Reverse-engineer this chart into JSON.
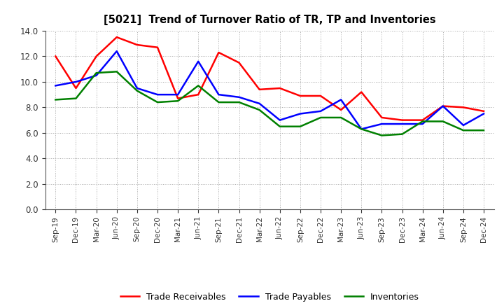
{
  "title": "[5021]  Trend of Turnover Ratio of TR, TP and Inventories",
  "x_labels": [
    "Sep-19",
    "Dec-19",
    "Mar-20",
    "Jun-20",
    "Sep-20",
    "Dec-20",
    "Mar-21",
    "Jun-21",
    "Sep-21",
    "Dec-21",
    "Mar-22",
    "Jun-22",
    "Sep-22",
    "Dec-22",
    "Mar-23",
    "Jun-23",
    "Sep-23",
    "Dec-23",
    "Mar-24",
    "Jun-24",
    "Sep-24",
    "Dec-24"
  ],
  "trade_receivables": [
    12.0,
    9.5,
    12.0,
    13.5,
    12.9,
    12.7,
    8.7,
    9.0,
    12.3,
    11.5,
    9.4,
    9.5,
    8.9,
    8.9,
    7.8,
    9.2,
    7.2,
    7.0,
    7.0,
    8.1,
    8.0,
    7.7
  ],
  "trade_payables": [
    9.7,
    10.0,
    10.5,
    12.4,
    9.5,
    9.0,
    9.0,
    11.6,
    9.0,
    8.8,
    8.3,
    7.0,
    7.5,
    7.7,
    8.6,
    6.3,
    6.7,
    6.7,
    6.7,
    8.1,
    6.6,
    7.5
  ],
  "inventories": [
    8.6,
    8.7,
    10.7,
    10.8,
    9.3,
    8.4,
    8.5,
    9.7,
    8.4,
    8.4,
    7.8,
    6.5,
    6.5,
    7.2,
    7.2,
    6.3,
    5.8,
    5.9,
    6.9,
    6.9,
    6.2,
    6.2
  ],
  "color_tr": "#FF0000",
  "color_tp": "#0000FF",
  "color_inv": "#008000",
  "ylim": [
    0.0,
    14.0
  ],
  "yticks": [
    0.0,
    2.0,
    4.0,
    6.0,
    8.0,
    10.0,
    12.0,
    14.0
  ],
  "legend_labels": [
    "Trade Receivables",
    "Trade Payables",
    "Inventories"
  ],
  "bg_color": "#FFFFFF",
  "plot_bg_color": "#FFFFFF"
}
